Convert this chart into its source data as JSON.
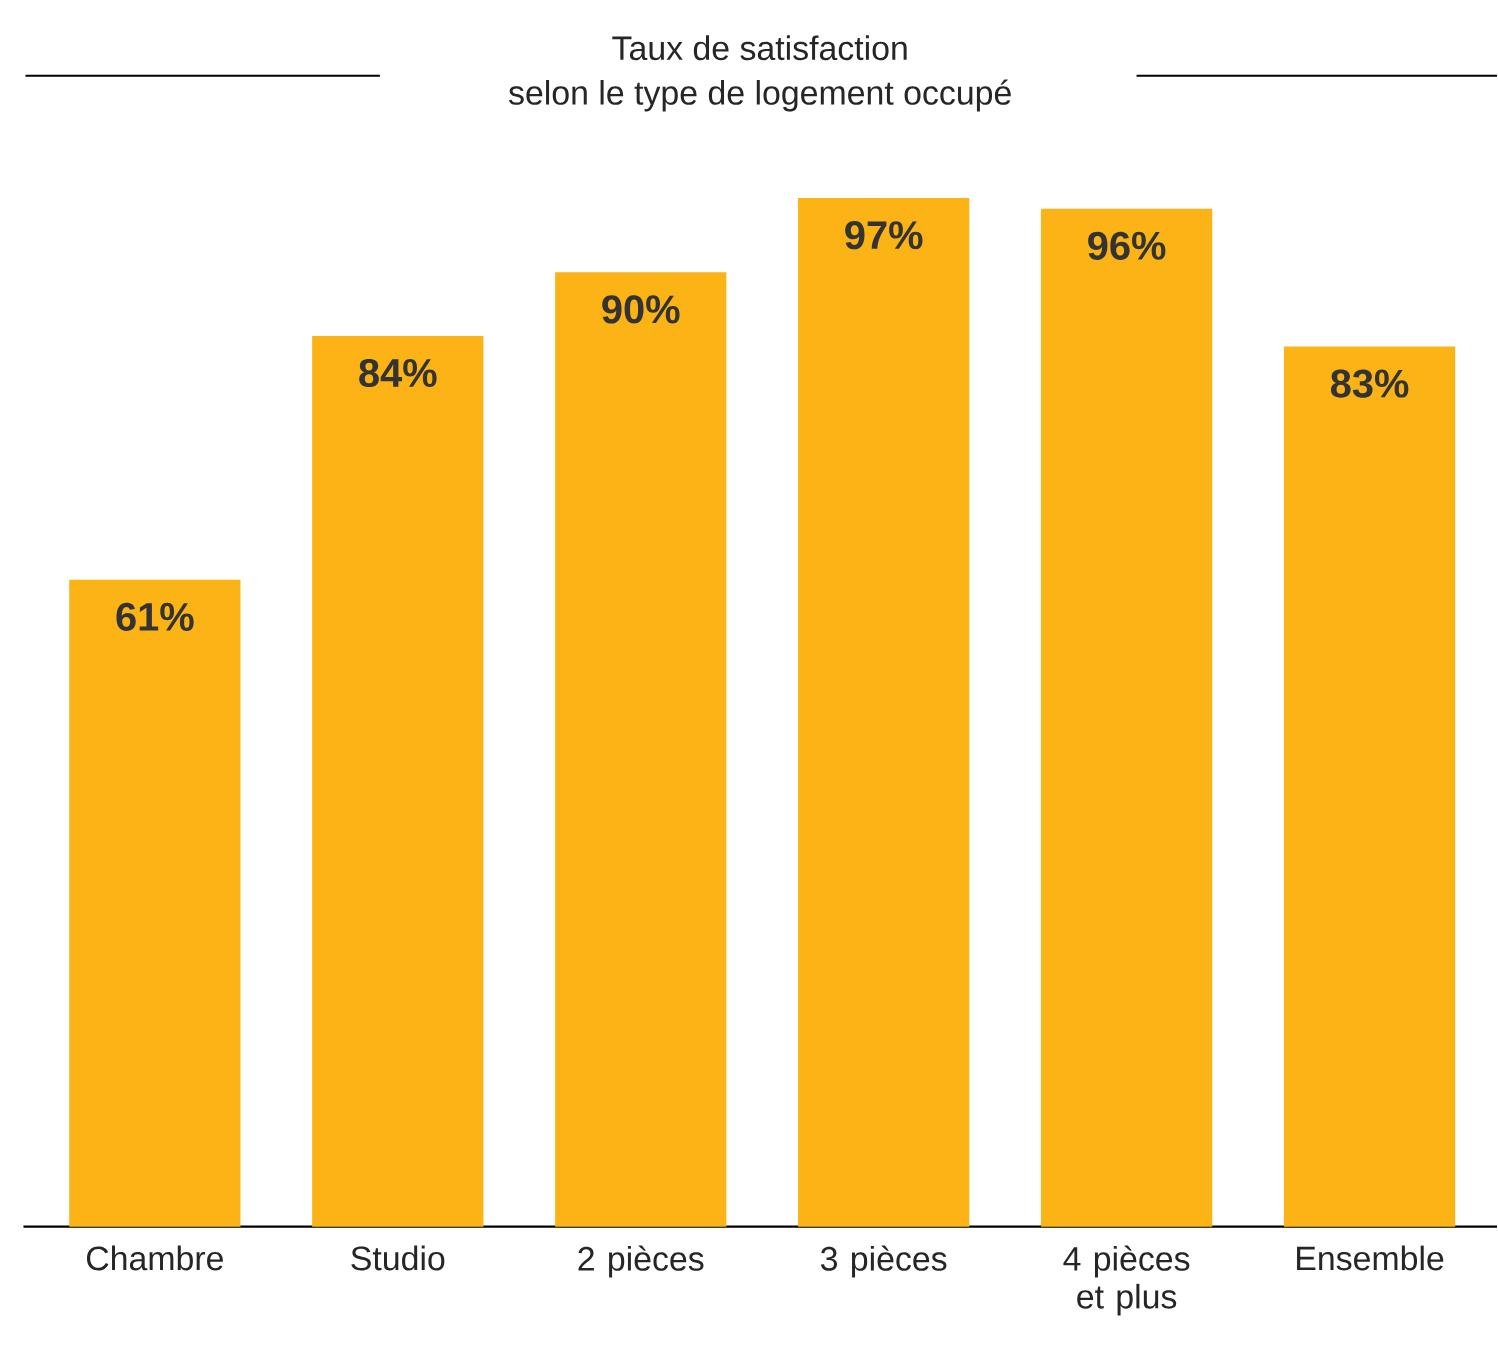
{
  "chart_data": {
    "type": "bar",
    "title": "Taux de satisfaction",
    "subtitle": "selon le type de logement occupé",
    "categories": [
      "Chambre",
      "Studio",
      "2 pièces",
      "3 pièces",
      "4 pièces et plus",
      "Ensemble"
    ],
    "values": [
      61,
      84,
      90,
      97,
      96,
      83
    ],
    "value_labels": [
      "61%",
      "84%",
      "90%",
      "97%",
      "96%",
      "83%"
    ],
    "color": "#fbb316"
  }
}
